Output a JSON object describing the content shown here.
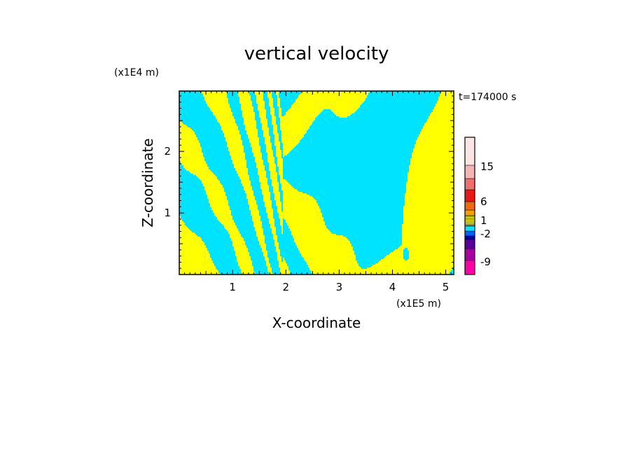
{
  "chart_data": {
    "type": "heatmap",
    "title": "vertical velocity",
    "xlabel": "X-coordinate",
    "ylabel": "Z-coordinate",
    "x_unit": "(x1E5 m)",
    "y_unit": "(x1E4 m)",
    "time_label": "t=174000 s",
    "xlim": [
      0,
      5.15
    ],
    "ylim": [
      0,
      2.98
    ],
    "x_ticks": [
      "1",
      "2",
      "3",
      "4",
      "5"
    ],
    "y_ticks": [
      "1",
      "2"
    ],
    "colorbar": {
      "tick_labels": [
        "15",
        "6",
        "1",
        "-2",
        "-9"
      ],
      "levels_top_to_bottom": [
        "#fce4e4",
        "#f4b4b4",
        "#ec7070",
        "#e81818",
        "#ee6a10",
        "#f5a000",
        "#ffff00",
        "#00e5ff",
        "#0060ff",
        "#0000b0",
        "#5a00a0",
        "#a800a0",
        "#ff00a8"
      ]
    },
    "dominant_colors": {
      "positive": "#ffff00",
      "negative": "#00e5ff"
    }
  }
}
